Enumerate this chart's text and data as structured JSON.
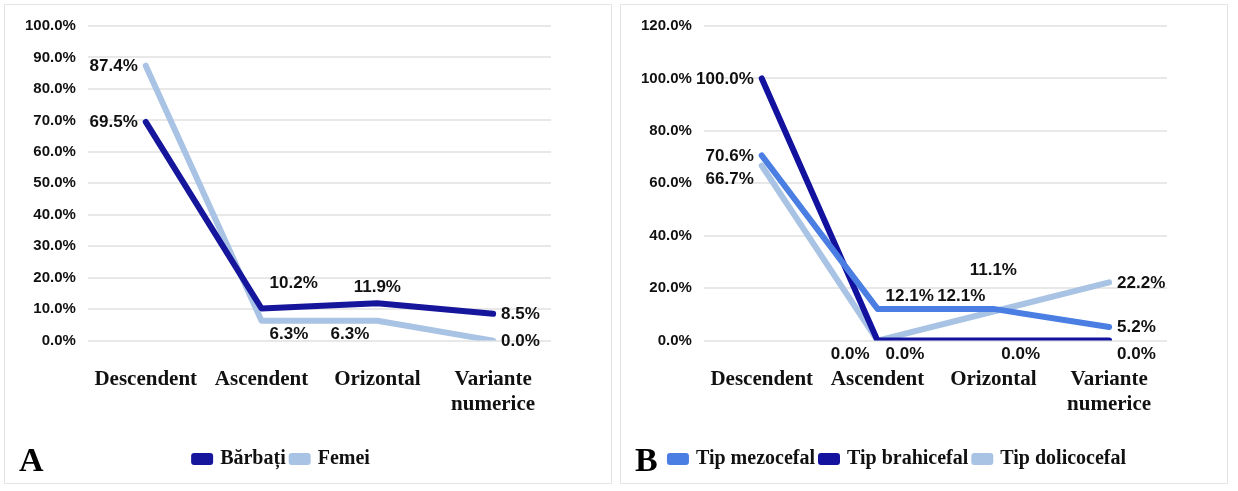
{
  "chart_data": [
    {
      "type": "line",
      "categories": [
        "Descendent",
        "Ascendent",
        "Orizontal",
        "Variante numerice"
      ],
      "series": [
        {
          "name": "Bărbați",
          "color": "#16169c",
          "values": [
            69.5,
            10.2,
            11.9,
            8.5
          ],
          "value_labels": [
            "69.5%",
            "10.2%",
            "11.9%",
            "8.5%"
          ]
        },
        {
          "name": "Femei",
          "color": "#a8c3e3",
          "values": [
            87.4,
            6.3,
            6.3,
            0.0
          ],
          "value_labels": [
            "87.4%",
            "6.3%",
            "6.3%",
            "0.0%"
          ]
        }
      ],
      "ylim": [
        0,
        100
      ],
      "yticks": [
        {
          "value": 0,
          "label": "0.0%"
        },
        {
          "value": 10,
          "label": "10.0%"
        },
        {
          "value": 20,
          "label": "20.0%"
        },
        {
          "value": 30,
          "label": "30.0%"
        },
        {
          "value": 40,
          "label": "40.0%"
        },
        {
          "value": 50,
          "label": "50.0%"
        },
        {
          "value": 60,
          "label": "60.0%"
        },
        {
          "value": 70,
          "label": "70.0%"
        },
        {
          "value": 80,
          "label": "80.0%"
        },
        {
          "value": 90,
          "label": "90.0%"
        },
        {
          "value": 100,
          "label": "100.0%"
        }
      ],
      "grid": "y",
      "legend": "bottom",
      "marker": "none",
      "line_style": "solid",
      "annotations": [
        "A"
      ]
    },
    {
      "type": "line",
      "categories": [
        "Descendent",
        "Ascendent",
        "Orizontal",
        "Variante numerice"
      ],
      "series": [
        {
          "name": "Tip mezocefal",
          "color": "#4a7ee2",
          "values": [
            70.6,
            12.1,
            12.1,
            5.2
          ],
          "value_labels": [
            "70.6%",
            "12.1%",
            "12.1%",
            "5.2%"
          ]
        },
        {
          "name": "Tip brahicefal",
          "color": "#12129e",
          "values": [
            100.0,
            0.0,
            0.0,
            0.0
          ],
          "value_labels": [
            "100.0%",
            "0.0%",
            "0.0%",
            "0.0%"
          ]
        },
        {
          "name": "Tip dolicocefal",
          "color": "#a8c3e3",
          "values": [
            66.7,
            0.0,
            11.1,
            22.2
          ],
          "value_labels": [
            "66.7%",
            "0.0%",
            "11.1%",
            "22.2%"
          ]
        }
      ],
      "ylim": [
        0,
        120
      ],
      "yticks": [
        {
          "value": 0,
          "label": "0.0%"
        },
        {
          "value": 20,
          "label": "20.0%"
        },
        {
          "value": 40,
          "label": "40.0%"
        },
        {
          "value": 60,
          "label": "60.0%"
        },
        {
          "value": 80,
          "label": "80.0%"
        },
        {
          "value": 100,
          "label": "100.0%"
        },
        {
          "value": 120,
          "label": "120.0%"
        }
      ],
      "grid": "y",
      "legend": "bottom",
      "marker": "none",
      "line_style": "solid",
      "annotations": [
        "B"
      ]
    }
  ]
}
